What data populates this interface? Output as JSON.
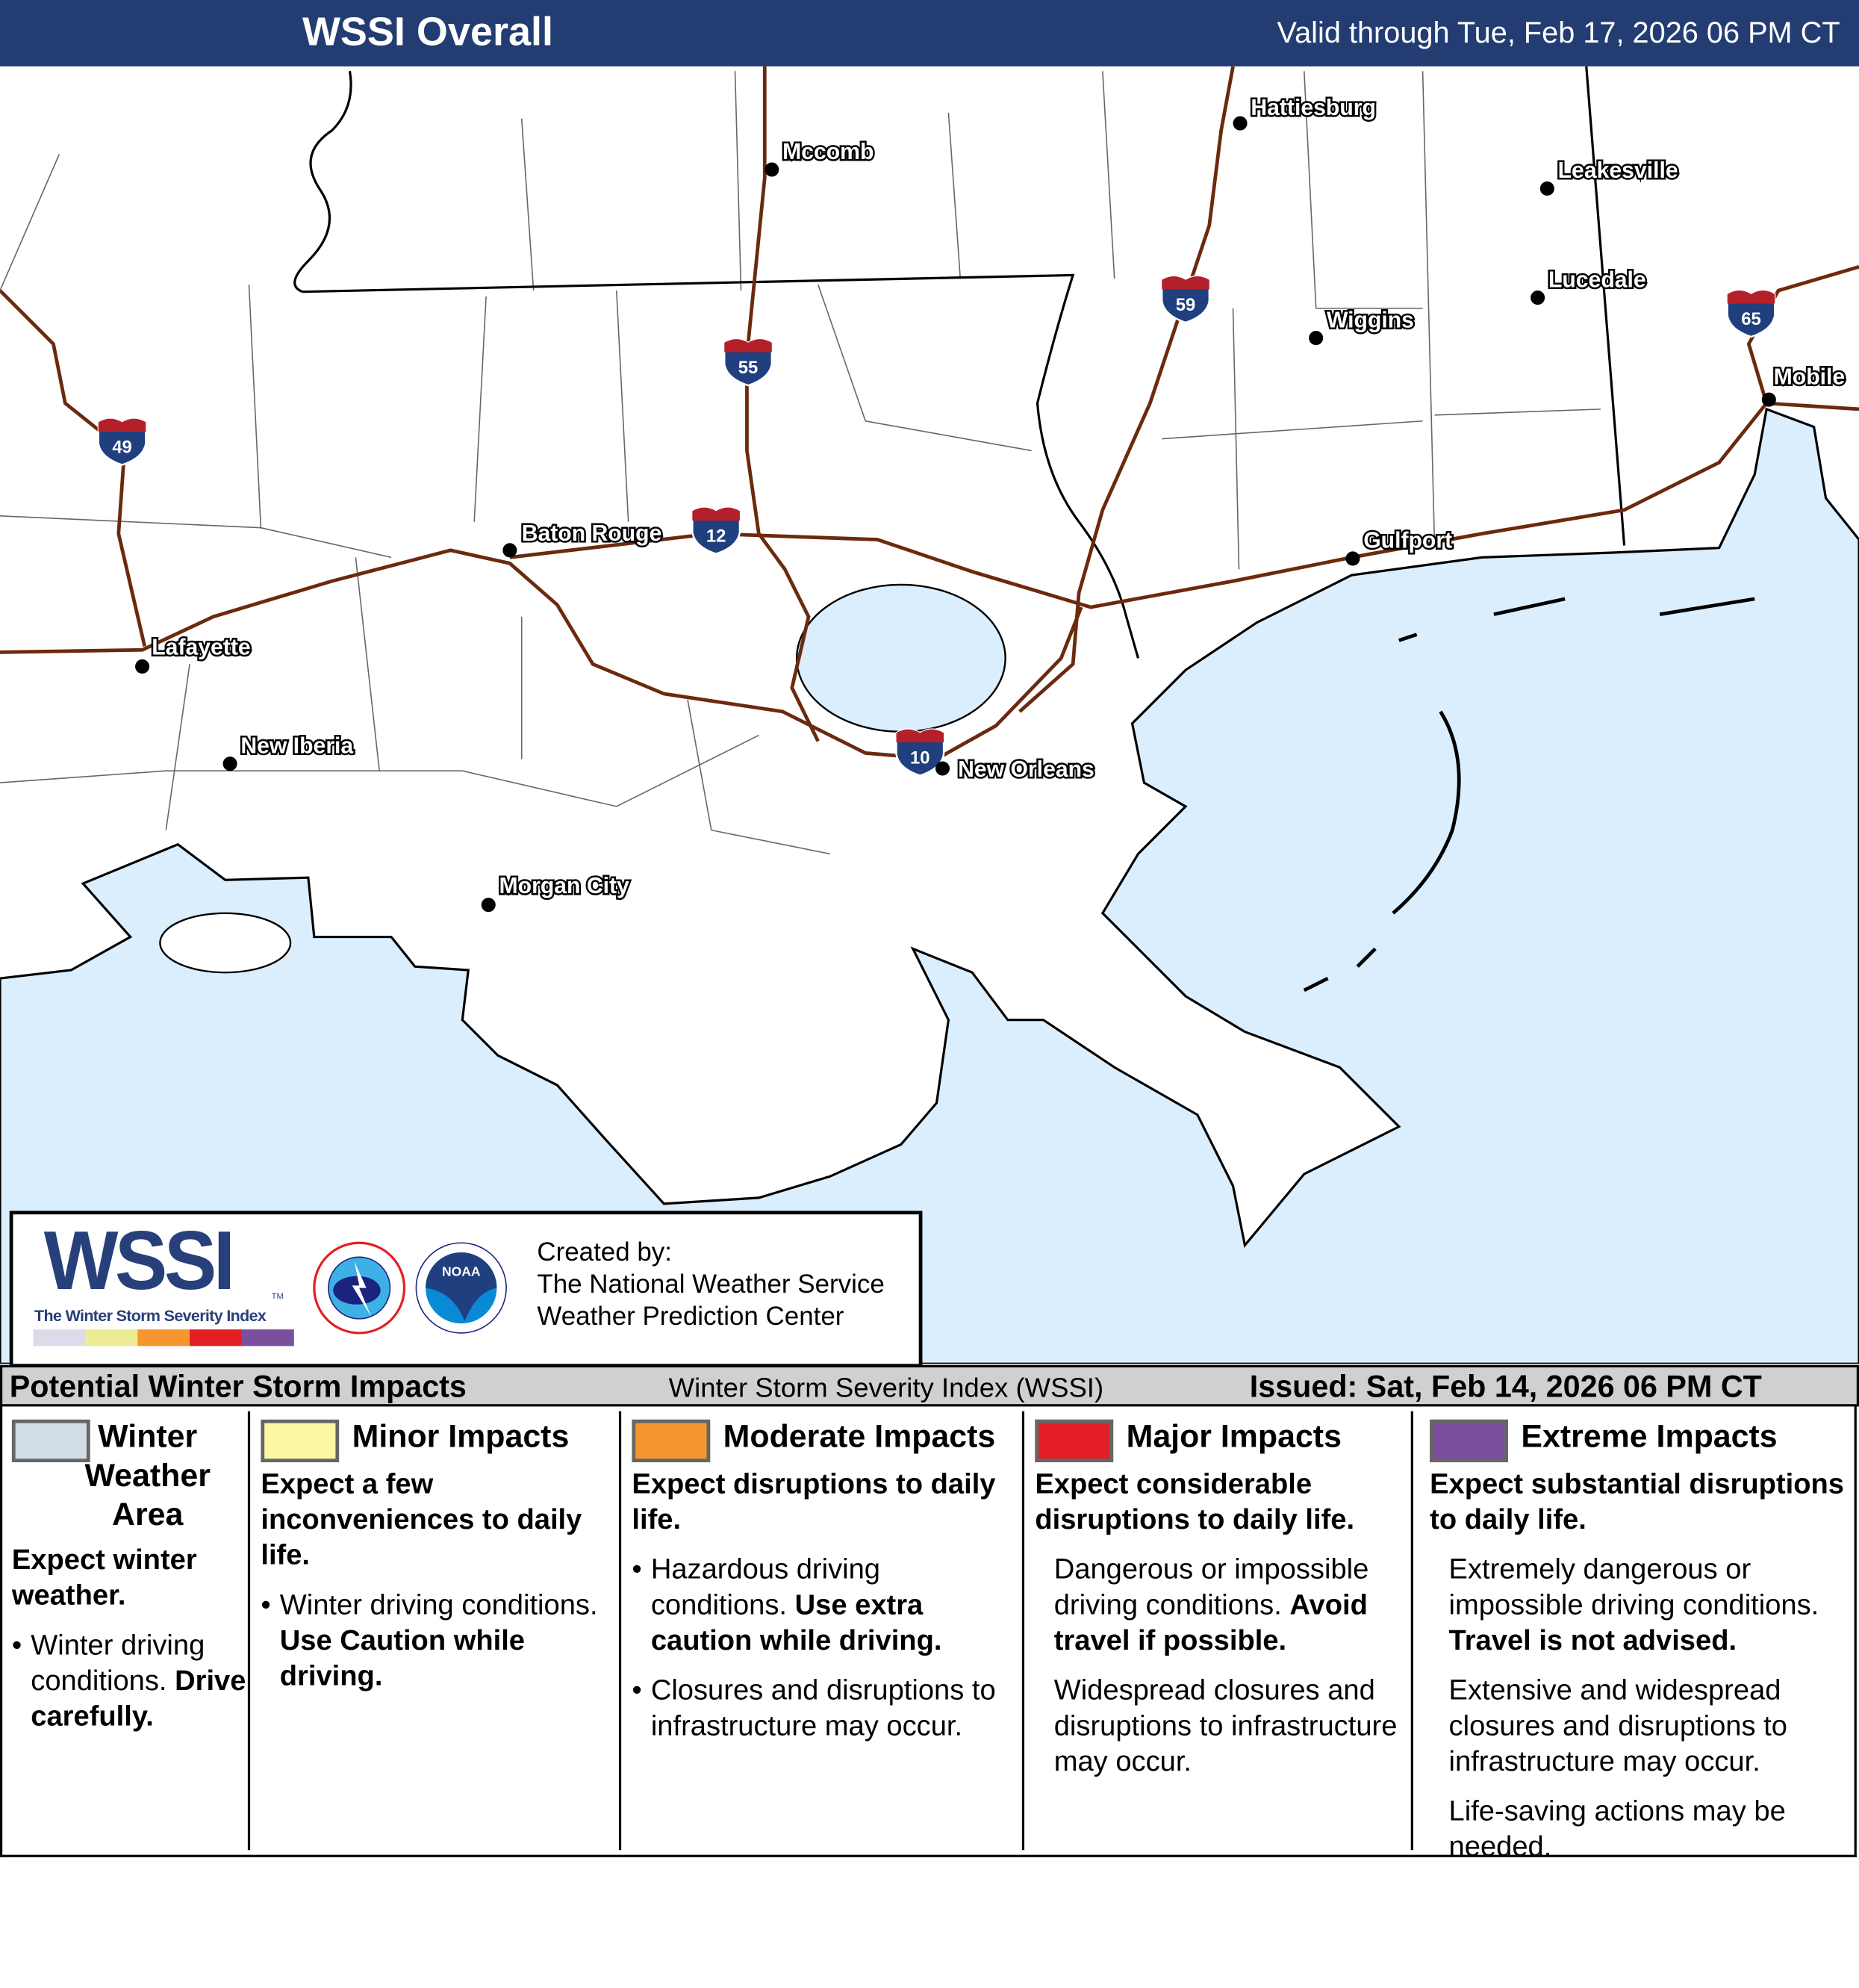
{
  "header": {
    "title": "WSSI Overall",
    "valid": "Valid through Tue, Feb 17, 2026 06 PM CT"
  },
  "map": {
    "colors": {
      "water": "#dbeefd",
      "land": "#ffffff",
      "interstate": "#6b2a0e",
      "shield_blue": "#1f3f7f",
      "shield_red": "#b3202a"
    },
    "cities": [
      "Hattiesburg",
      "Mccomb",
      "Leakesville",
      "Lucedale",
      "Wiggins",
      "Mobile",
      "Baton Rouge",
      "Gulfport",
      "Lafayette",
      "New Iberia",
      "New Orleans",
      "Morgan City"
    ],
    "interstates": [
      "49",
      "55",
      "12",
      "59",
      "10",
      "65"
    ]
  },
  "logo": {
    "wssi": "WSSI",
    "tm": "TM",
    "subtitle": "The Winter Storm Severity Index",
    "nws": "NATIONAL WEATHER SERVICE",
    "noaa": "NOAA",
    "created": [
      "Created by:",
      "The National Weather Service",
      "Weather Prediction Center"
    ]
  },
  "legend": {
    "title": "Potential Winter Storm Impacts",
    "middle": "Winter Storm Severity Index (WSSI)",
    "issued": "Issued: Sat, Feb 14, 2026 06 PM CT",
    "categories": [
      {
        "title": "Winter Weather Area",
        "color": "#d3dde6",
        "summary": "Expect winter weather.",
        "bullets": [
          {
            "text": "Winter driving conditions.",
            "bold": "Drive carefully."
          }
        ]
      },
      {
        "title": "Minor Impacts",
        "color": "#fbf7a4",
        "summary": "Expect a few inconveniences to daily life.",
        "bullets": [
          {
            "text": "Winter driving conditions.",
            "bold": "Use Caution while driving."
          }
        ]
      },
      {
        "title": "Moderate Impacts",
        "color": "#f7962f",
        "summary": "Expect disruptions to daily life.",
        "bullets": [
          {
            "text": "Hazardous driving conditions.",
            "bold": "Use extra caution while driving."
          },
          {
            "text": "Closures and disruptions to infrastructure may occur.",
            "bold": ""
          }
        ]
      },
      {
        "title": "Major Impacts",
        "color": "#e31e25",
        "summary": "Expect considerable disruptions to daily life.",
        "bullets": [
          {
            "text": "Dangerous or impossible driving conditions.",
            "bold": "Avoid travel if possible."
          },
          {
            "text": "Widespread closures and disruptions to infrastructure may occur.",
            "bold": ""
          }
        ]
      },
      {
        "title": "Extreme Impacts",
        "color": "#7a4f9e",
        "summary": "Expect substantial disruptions to daily life.",
        "bullets": [
          {
            "text": "Extremely dangerous or impossible driving conditions.",
            "bold": "Travel is not advised."
          },
          {
            "text": "Extensive and widespread closures and disruptions to infrastructure may occur.",
            "bold": ""
          },
          {
            "text": "Life-saving actions may be needed.",
            "bold": ""
          }
        ]
      }
    ]
  }
}
